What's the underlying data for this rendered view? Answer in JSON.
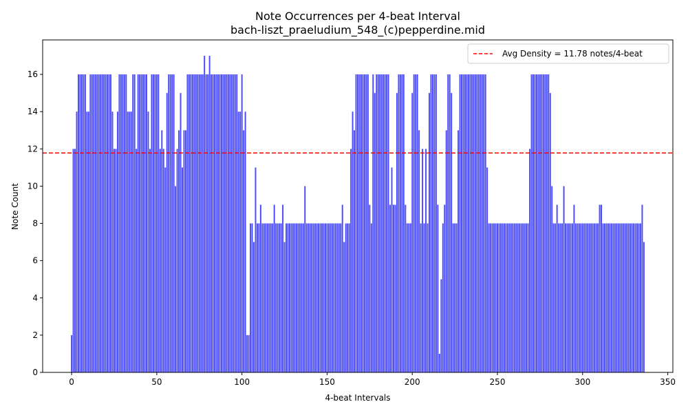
{
  "chart_data": {
    "type": "bar",
    "title": "Note Occurrences per 4-beat Interval",
    "subtitle": "bach-liszt_praeludium_548_(c)pepperdine.mid",
    "xlabel": "4-beat Intervals",
    "ylabel": "Note Count",
    "xlim": [
      -17,
      353
    ],
    "ylim": [
      0,
      17.85
    ],
    "xticks": [
      0,
      50,
      100,
      150,
      200,
      250,
      300,
      350
    ],
    "yticks": [
      0,
      2,
      4,
      6,
      8,
      10,
      12,
      14,
      16
    ],
    "bar_color": "#0000ff",
    "bar_alpha": 0.7,
    "grid": false,
    "legend_position": "top-right",
    "series": [
      {
        "name": "",
        "values": [
          2,
          12,
          12,
          14,
          16,
          16,
          16,
          16,
          16,
          14,
          14,
          16,
          16,
          16,
          16,
          16,
          16,
          16,
          16,
          16,
          16,
          16,
          16,
          16,
          14,
          12,
          12,
          14,
          16,
          16,
          16,
          16,
          16,
          14,
          14,
          14,
          16,
          16,
          12,
          16,
          16,
          16,
          16,
          16,
          16,
          14,
          12,
          16,
          16,
          16,
          16,
          16,
          12,
          13,
          12,
          11,
          15,
          16,
          16,
          16,
          16,
          10,
          12,
          13,
          15,
          11,
          13,
          13,
          16,
          16,
          16,
          16,
          16,
          16,
          16,
          16,
          16,
          16,
          17,
          16,
          16,
          17,
          16,
          16,
          16,
          16,
          16,
          16,
          16,
          16,
          16,
          16,
          16,
          16,
          16,
          16,
          16,
          16,
          14,
          14,
          16,
          13,
          14,
          2,
          2,
          8,
          8,
          7,
          11,
          8,
          8,
          9,
          8,
          8,
          8,
          8,
          8,
          8,
          8,
          9,
          8,
          8,
          8,
          8,
          9,
          7,
          8,
          8,
          8,
          8,
          8,
          8,
          8,
          8,
          8,
          8,
          8,
          10,
          8,
          8,
          8,
          8,
          8,
          8,
          8,
          8,
          8,
          8,
          8,
          8,
          8,
          8,
          8,
          8,
          8,
          8,
          8,
          8,
          8,
          9,
          7,
          8,
          8,
          8,
          12,
          14,
          13,
          16,
          16,
          16,
          16,
          16,
          16,
          16,
          16,
          9,
          8,
          16,
          15,
          16,
          16,
          16,
          16,
          16,
          16,
          16,
          16,
          9,
          11,
          9,
          9,
          15,
          16,
          16,
          16,
          16,
          9,
          8,
          8,
          8,
          15,
          16,
          16,
          16,
          13,
          8,
          12,
          8,
          12,
          8,
          15,
          16,
          16,
          16,
          16,
          9,
          1,
          5,
          8,
          9,
          13,
          16,
          16,
          15,
          8,
          8,
          8,
          13,
          16,
          16,
          16,
          16,
          16,
          16,
          16,
          16,
          16,
          16,
          16,
          16,
          16,
          16,
          16,
          16,
          11,
          8,
          8,
          8,
          8,
          8,
          8,
          8,
          8,
          8,
          8,
          8,
          8,
          8,
          8,
          8,
          8,
          8,
          8,
          8,
          8,
          8,
          8,
          8,
          8,
          12,
          16,
          16,
          16,
          16,
          16,
          16,
          16,
          16,
          16,
          16,
          16,
          15,
          10,
          8,
          8,
          9,
          8,
          8,
          8,
          10,
          8,
          8,
          8,
          8,
          8,
          9,
          8,
          8,
          8,
          8,
          8,
          8,
          8,
          8,
          8,
          8,
          8,
          8,
          8,
          8,
          9,
          9,
          8,
          8,
          8,
          8,
          8,
          8,
          8,
          8,
          8,
          8,
          8,
          8,
          8,
          8,
          8,
          8,
          8,
          8,
          8,
          8,
          8,
          8,
          8,
          9,
          7
        ]
      }
    ],
    "reference_line": {
      "value": 11.78,
      "color": "#ff0000",
      "style": "dashed",
      "label": "Avg Density = 11.78 notes/4-beat"
    }
  }
}
